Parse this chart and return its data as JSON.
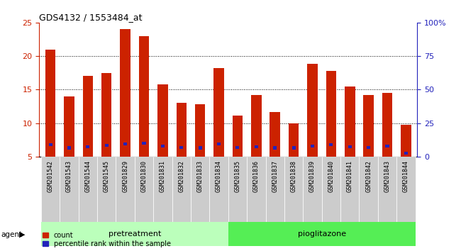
{
  "title": "GDS4132 / 1553484_at",
  "samples": [
    "GSM201542",
    "GSM201543",
    "GSM201544",
    "GSM201545",
    "GSM201829",
    "GSM201830",
    "GSM201831",
    "GSM201832",
    "GSM201833",
    "GSM201834",
    "GSM201835",
    "GSM201836",
    "GSM201837",
    "GSM201838",
    "GSM201839",
    "GSM201840",
    "GSM201841",
    "GSM201842",
    "GSM201843",
    "GSM201844"
  ],
  "count_values": [
    21.0,
    14.0,
    17.0,
    17.5,
    24.0,
    23.0,
    15.8,
    13.0,
    12.8,
    18.2,
    11.1,
    14.2,
    11.7,
    10.0,
    18.8,
    17.8,
    15.5,
    14.2,
    14.5,
    9.7
  ],
  "percentile_values": [
    6.8,
    6.3,
    6.5,
    6.7,
    6.9,
    7.0,
    6.6,
    6.4,
    6.3,
    6.9,
    6.4,
    6.5,
    6.3,
    6.3,
    6.6,
    6.8,
    6.5,
    6.4,
    6.6,
    5.5
  ],
  "base_value": 5.0,
  "ylim_left": [
    5,
    25
  ],
  "ylim_right": [
    0,
    100
  ],
  "yticks_left": [
    5,
    10,
    15,
    20,
    25
  ],
  "yticks_right": [
    0,
    25,
    50,
    75,
    100
  ],
  "ytick_labels_right": [
    "0",
    "25",
    "50",
    "75",
    "100%"
  ],
  "bar_color_red": "#cc2200",
  "bar_color_blue": "#2222bb",
  "pretreatment_label": "pretreatment",
  "pioglitazone_label": "pioglitazone",
  "pretreatment_indices": [
    0,
    1,
    2,
    3,
    4,
    5,
    6,
    7,
    8,
    9
  ],
  "pioglitazone_indices": [
    10,
    11,
    12,
    13,
    14,
    15,
    16,
    17,
    18,
    19
  ],
  "pretreatment_color": "#bbffbb",
  "pioglitazone_color": "#55ee55",
  "agent_label": "agent",
  "legend_count_label": "count",
  "legend_percentile_label": "percentile rank within the sample",
  "bar_width": 0.55,
  "bg_color": "#ffffff",
  "tick_bg_color": "#cccccc",
  "plot_bg_color": "#ffffff"
}
